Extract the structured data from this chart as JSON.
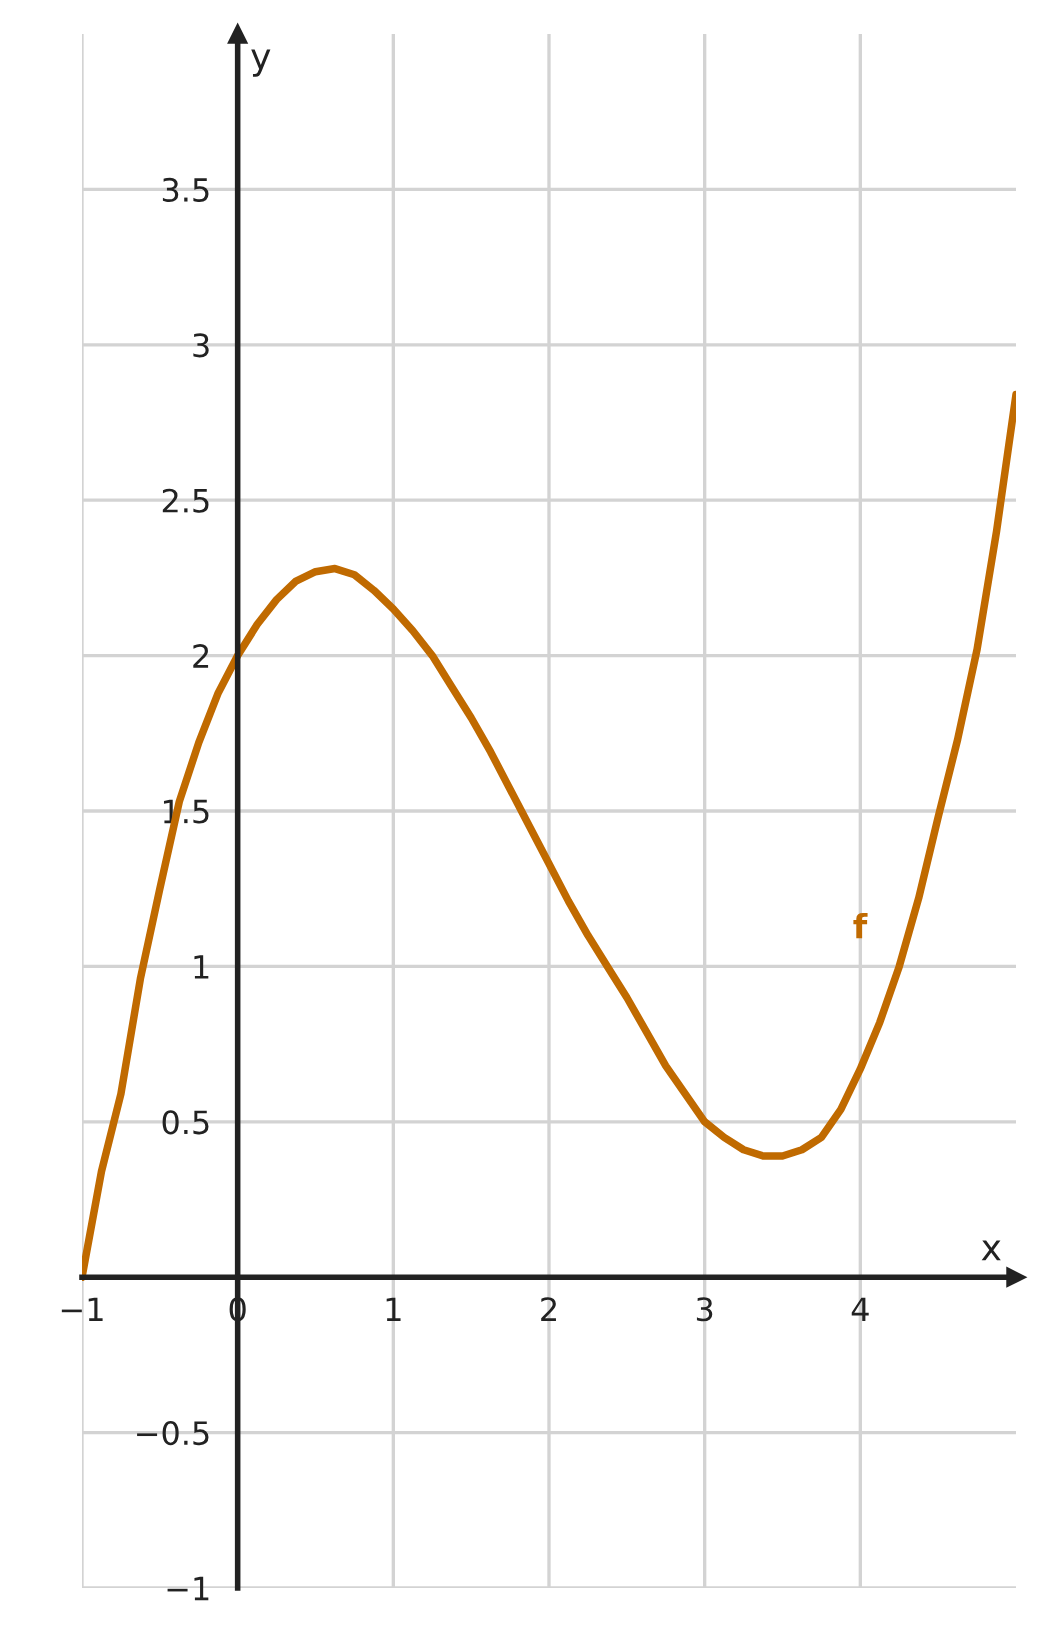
{
  "chart_data": {
    "type": "line",
    "xlabel": "x",
    "ylabel": "y",
    "x": [
      -1,
      -0.875,
      -0.75,
      -0.625,
      -0.5,
      -0.375,
      -0.25,
      -0.125,
      0,
      0.125,
      0.25,
      0.375,
      0.5,
      0.625,
      0.75,
      0.875,
      1,
      1.125,
      1.25,
      1.375,
      1.5,
      1.625,
      1.75,
      1.875,
      2,
      2.125,
      2.25,
      2.375,
      2.5,
      2.625,
      2.75,
      2.875,
      3,
      3.125,
      3.25,
      3.375,
      3.5,
      3.625,
      3.75,
      3.875,
      4,
      4.125,
      4.25,
      4.375,
      4.5,
      4.625,
      4.75,
      4.875,
      5
    ],
    "series": [
      {
        "color": "#c06a00",
        "values": [
          0,
          0.34,
          0.59,
          0.96,
          1.25,
          1.53,
          1.72,
          1.88,
          2,
          2.1,
          2.18,
          2.24,
          2.27,
          2.28,
          2.26,
          2.21,
          2.15,
          2.08,
          2.0,
          1.9,
          1.8,
          1.69,
          1.57,
          1.45,
          1.33,
          1.21,
          1.1,
          1.0,
          0.9,
          0.79,
          0.68,
          0.59,
          0.5,
          0.45,
          0.41,
          0.39,
          0.39,
          0.41,
          0.45,
          0.54,
          0.67,
          0.82,
          1.0,
          1.22,
          1.48,
          1.73,
          2.02,
          2.4,
          2.84
        ]
      }
    ],
    "annotations": [
      "f"
    ],
    "xlim": [
      -1,
      5
    ],
    "ylim": [
      -1,
      4
    ],
    "xticks": [
      {
        "value": -1,
        "label": "−1"
      },
      {
        "value": 0,
        "label": "0"
      },
      1,
      2,
      3,
      4
    ],
    "yticks": [
      {
        "value": -1,
        "label": "−1"
      },
      {
        "value": -0.5,
        "label": "−0.5"
      },
      0.5,
      1,
      1.5,
      2,
      2.5,
      3,
      3.5
    ],
    "grid": true,
    "legend": false,
    "marker": "none",
    "line_style": "solid"
  }
}
